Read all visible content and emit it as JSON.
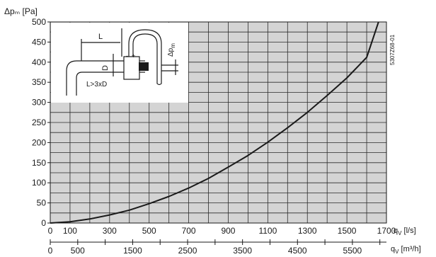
{
  "chart_data": {
    "type": "line",
    "ylabel": "Δpₘ [Pa]",
    "ylim": [
      0,
      500
    ],
    "yticks": [
      0,
      50,
      100,
      150,
      200,
      250,
      300,
      350,
      400,
      450,
      500
    ],
    "xlim": [
      0,
      1700
    ],
    "xticks": [
      0,
      100,
      300,
      500,
      700,
      900,
      1100,
      1300,
      1500,
      1700
    ],
    "xlabel_prefix": "q",
    "xlabel_sub": "V",
    "xlabel_unit": "[l/s]",
    "x2lim": [
      0,
      6120
    ],
    "x2ticks": [
      0,
      500,
      1500,
      2500,
      3500,
      4500,
      5500
    ],
    "x2label_prefix": "q",
    "x2label_sub": "V",
    "x2label_unit": "[m³/h]",
    "grid": true,
    "doc_code": "5307Z68-01",
    "series": [
      {
        "x": [
          0,
          100,
          200,
          300,
          400,
          500,
          600,
          700,
          800,
          900,
          1000,
          1100,
          1200,
          1300,
          1400,
          1500,
          1600,
          1660
        ],
        "values": [
          0,
          3,
          10,
          20,
          32,
          48,
          66,
          87,
          111,
          139,
          168,
          201,
          237,
          275,
          317,
          361,
          412,
          500
        ]
      }
    ],
    "inset": {
      "labels": {
        "length": "L",
        "diameter": "D",
        "condition": "L>3xD",
        "pressure": "Δp",
        "pressure_sub": "m",
        "minus": "-",
        "plus": "+"
      }
    },
    "colors": {
      "grid_fill": "#d4d4d4",
      "grid_line": "#2a2a2a",
      "curve": "#1a1a1a",
      "inset_bg": "#ffffff"
    }
  }
}
